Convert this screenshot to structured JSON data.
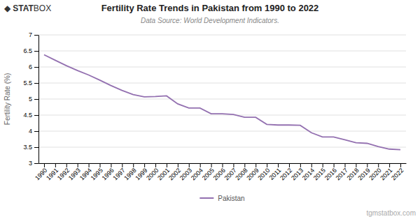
{
  "chart_data": {
    "type": "line",
    "title": "Fertility Rate Trends in Pakistan from 1990 to 2022",
    "subtitle": "Data Source: World Development Indicators.",
    "y_label": "Fertility Rate (%)",
    "annotations": [
      "◆",
      "STAT",
      "BOX",
      "tgmstatbox.com"
    ],
    "x": [
      1990,
      1991,
      1992,
      1993,
      1994,
      1995,
      1996,
      1997,
      1998,
      1999,
      2000,
      2001,
      2002,
      2003,
      2004,
      2005,
      2006,
      2007,
      2008,
      2009,
      2010,
      2011,
      2012,
      2013,
      2014,
      2015,
      2016,
      2017,
      2018,
      2019,
      2020,
      2021,
      2022
    ],
    "series": [
      {
        "name": "Pakistan",
        "color": "#9370B0",
        "values": [
          6.38,
          6.21,
          6.04,
          5.89,
          5.75,
          5.59,
          5.42,
          5.27,
          5.14,
          5.07,
          5.08,
          5.1,
          4.85,
          4.72,
          4.72,
          4.54,
          4.54,
          4.52,
          4.43,
          4.43,
          4.21,
          4.19,
          4.19,
          4.18,
          3.95,
          3.82,
          3.82,
          3.73,
          3.64,
          3.62,
          3.52,
          3.44,
          3.42
        ]
      }
    ],
    "xlim": [
      1989.5,
      2022.5
    ],
    "xticks": [
      1990,
      1991,
      1992,
      1993,
      1994,
      1995,
      1996,
      1997,
      1998,
      1999,
      2000,
      2001,
      2002,
      2003,
      2004,
      2005,
      2006,
      2007,
      2008,
      2009,
      2010,
      2011,
      2012,
      2013,
      2014,
      2015,
      2016,
      2017,
      2018,
      2019,
      2020,
      2021,
      2022
    ],
    "ylim": [
      3,
      7
    ],
    "yticks": [
      3,
      3.5,
      4,
      4.5,
      5,
      5.5,
      6,
      6.5,
      7
    ],
    "grid": true,
    "legend": "bottom"
  }
}
